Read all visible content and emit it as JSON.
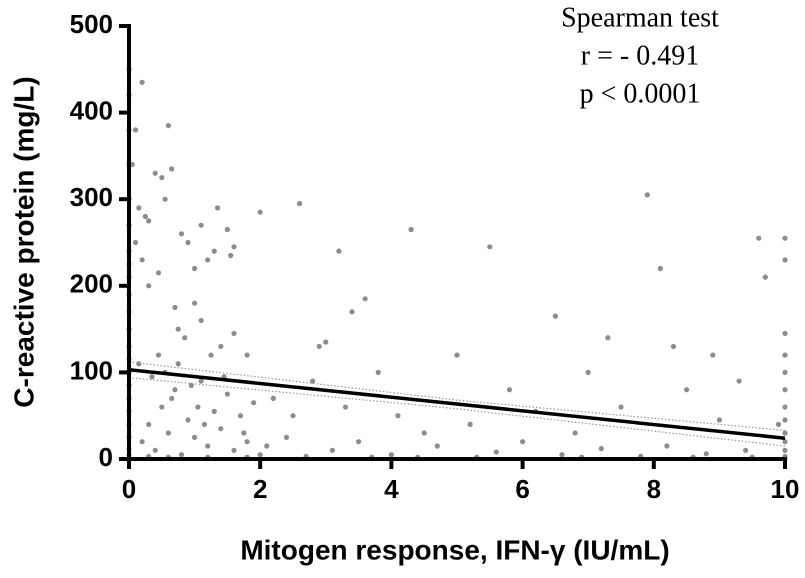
{
  "chart_data": {
    "type": "scatter",
    "xlabel": "Mitogen response, IFN-γ (IU/mL)",
    "ylabel": "C-reactive protein (mg/L)",
    "annotations": [
      "Spearman test",
      "r = - 0.491",
      "p < 0.0001"
    ],
    "xlim": [
      0,
      10
    ],
    "ylim": [
      0,
      500
    ],
    "xticks": [
      0,
      2,
      4,
      6,
      8,
      10
    ],
    "yticks": [
      0,
      100,
      200,
      300,
      400,
      500
    ],
    "color": "#8c8c8c",
    "fit_color": "#000000",
    "x": [
      0,
      0,
      0,
      0,
      0,
      0,
      0,
      0,
      0,
      0,
      0,
      0,
      0,
      0,
      0,
      0,
      0,
      0,
      0,
      0,
      0,
      0,
      0,
      10,
      10,
      10,
      10,
      10,
      10,
      10,
      10,
      10,
      10,
      10,
      10,
      10,
      0.05,
      0.1,
      0.2,
      0.15,
      0.25,
      0.3,
      0.4,
      0.5,
      0.6,
      0.65,
      0.55,
      0.1,
      0.2,
      0.3,
      0.45,
      0.7,
      0.8,
      0.9,
      1.0,
      1.1,
      1.2,
      1.3,
      1.35,
      1.5,
      1.55,
      1.6,
      1.0,
      1.1,
      0.75,
      0.85,
      1.25,
      1.4,
      1.6,
      1.8,
      2.0,
      2.6,
      2.9,
      3.0,
      3.2,
      3.4,
      3.6,
      4.3,
      5.5,
      6.5,
      7.3,
      7.9,
      8.1,
      8.3,
      8.9,
      9.6,
      9.7,
      2.2,
      2.5,
      2.8,
      3.3,
      3.8,
      4.1,
      4.5,
      5.0,
      5.2,
      5.8,
      6.2,
      6.8,
      7.0,
      7.5,
      8.5,
      9.0,
      9.3,
      9.9,
      0.2,
      0.3,
      0.4,
      0.5,
      0.6,
      0.7,
      0.8,
      0.9,
      1.0,
      1.1,
      1.2,
      1.3,
      1.4,
      1.5,
      1.6,
      1.7,
      1.8,
      1.9,
      2.0,
      0.15,
      0.35,
      0.45,
      0.55,
      0.65,
      0.75,
      0.95,
      1.05,
      1.15,
      1.45,
      1.75,
      2.1,
      2.4,
      3.1,
      3.5,
      4.0,
      4.7,
      5.6,
      6.0,
      6.6,
      7.2,
      7.8,
      8.2,
      8.8,
      9.4,
      9.5,
      3.7,
      5.3,
      6.9,
      1.2,
      0.3,
      0.6,
      1.8,
      2.7,
      4.4,
      8.6
    ],
    "y": [
      450,
      420,
      380,
      340,
      300,
      270,
      240,
      225,
      210,
      190,
      170,
      150,
      130,
      115,
      100,
      85,
      70,
      55,
      40,
      25,
      12,
      5,
      0,
      255,
      230,
      145,
      120,
      100,
      80,
      60,
      45,
      30,
      20,
      10,
      3,
      0,
      340,
      380,
      435,
      290,
      280,
      275,
      330,
      325,
      385,
      335,
      300,
      250,
      230,
      200,
      215,
      175,
      260,
      250,
      220,
      270,
      230,
      240,
      290,
      265,
      235,
      245,
      180,
      160,
      150,
      140,
      120,
      130,
      145,
      120,
      285,
      295,
      130,
      135,
      240,
      170,
      185,
      265,
      245,
      165,
      140,
      305,
      220,
      130,
      120,
      255,
      210,
      70,
      50,
      90,
      60,
      100,
      50,
      30,
      120,
      40,
      80,
      55,
      30,
      100,
      60,
      80,
      45,
      90,
      40,
      20,
      40,
      10,
      60,
      30,
      80,
      5,
      45,
      25,
      90,
      15,
      55,
      35,
      75,
      10,
      50,
      20,
      65,
      5,
      110,
      95,
      120,
      100,
      70,
      110,
      85,
      60,
      40,
      95,
      30,
      15,
      25,
      10,
      20,
      5,
      15,
      8,
      20,
      5,
      12,
      3,
      15,
      6,
      10,
      2,
      2,
      2,
      2,
      2,
      3,
      2,
      2,
      3,
      2,
      2
    ],
    "fit": {
      "x": [
        0,
        10
      ],
      "y": [
        103,
        24
      ]
    },
    "band": {
      "x": [
        0,
        5,
        10
      ],
      "upper": [
        112,
        68,
        33
      ],
      "lower": [
        94,
        58,
        15
      ]
    }
  }
}
